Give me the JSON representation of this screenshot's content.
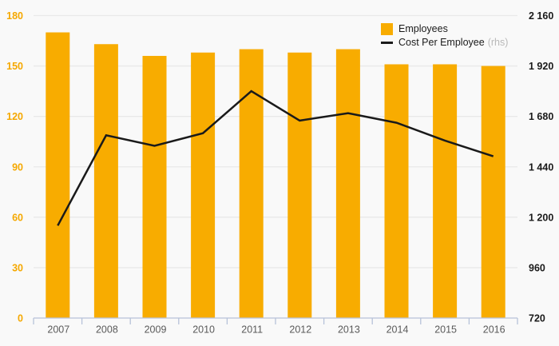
{
  "chart_data": {
    "type": "bar",
    "subtype": "bar+line-combo",
    "categories": [
      "2007",
      "2008",
      "2009",
      "2010",
      "2011",
      "2012",
      "2013",
      "2014",
      "2015",
      "2016"
    ],
    "series": [
      {
        "name": "Employees",
        "type": "bar",
        "axis": "left",
        "color": "#F8AC00",
        "values": [
          170,
          163,
          156,
          158,
          160,
          158,
          160,
          151,
          151,
          150
        ]
      },
      {
        "name": "Cost Per Employee",
        "suffix": "(rhs)",
        "type": "line",
        "axis": "right",
        "color": "#1a1a1a",
        "values": [
          1160,
          1590,
          1540,
          1600,
          1800,
          1660,
          1695,
          1650,
          1565,
          1490
        ]
      }
    ],
    "left_axis": {
      "min": 0,
      "max": 180,
      "step": 30,
      "labels": [
        "0",
        "30",
        "60",
        "90",
        "120",
        "150",
        "180"
      ],
      "label_color": "#F5A800"
    },
    "right_axis": {
      "min": 720,
      "max": 2160,
      "step": 240,
      "labels": [
        "720",
        "960",
        "1 200",
        "1 440",
        "1 680",
        "1 920",
        "2 160"
      ],
      "label_color": "#1a1a1a"
    },
    "legend": [
      {
        "label": "Employees",
        "suffix": ""
      },
      {
        "label": "Cost Per Employee",
        "suffix": "(rhs)"
      }
    ],
    "grid": true,
    "legend_position": "top-right",
    "title": "",
    "xlabel": "",
    "ylabel": ""
  },
  "colors": {
    "background": "#f9f9f9",
    "gridline": "#e9e9e9",
    "axis_line": "#b7c2d9",
    "year_label": "#5a5a5a",
    "legend_text": "#1a1a1a",
    "legend_suffix": "#b9b9b9",
    "line_stroke": "#1a1a1a"
  }
}
